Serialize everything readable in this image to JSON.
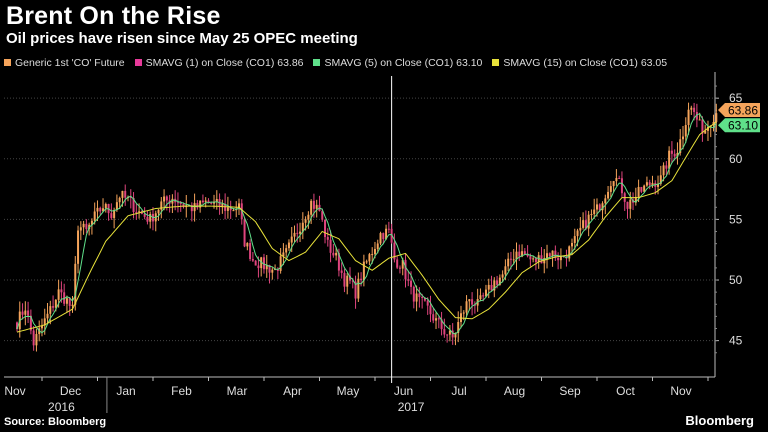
{
  "header": {
    "title": "Brent On the Rise",
    "subtitle": "Oil prices have risen since May 25 OPEC meeting"
  },
  "legend": [
    {
      "label": "Generic 1st 'CO' Future",
      "color": "#f5a45b"
    },
    {
      "label": "SMAVG (1) on Close (CO1) 63.86",
      "color": "#e83a9a"
    },
    {
      "label": "SMAVG (5) on Close (CO1) 63.10",
      "color": "#5fe08a"
    },
    {
      "label": "SMAVG (15) on Close (CO1) 63.05",
      "color": "#e8e23a"
    }
  ],
  "footer": {
    "source": "Source: Bloomberg",
    "brand": "Bloomberg"
  },
  "chart_data": {
    "type": "line",
    "series_names": [
      "Generic 1st 'CO' Future",
      "SMAVG (1) on Close (CO1)",
      "SMAVG (5) on Close (CO1)",
      "SMAVG (15) on Close (CO1)"
    ],
    "x_tick_labels": [
      "Nov",
      "Dec",
      "Jan",
      "Feb",
      "Mar",
      "Apr",
      "May",
      "Jun",
      "Jul",
      "Aug",
      "Sep",
      "Oct",
      "Nov"
    ],
    "year_labels": [
      {
        "label": "2016",
        "month_index": 0.8
      },
      {
        "label": "2017",
        "month_index": 7.1
      }
    ],
    "y_ticks": [
      45,
      50,
      55,
      60,
      65
    ],
    "ylim": [
      42,
      66.5
    ],
    "x_months": [
      0,
      12.6
    ],
    "marker_line_month": 6.75,
    "last_value_labels": [
      {
        "text": "63.86",
        "value": 63.86,
        "color": "#f5a45b"
      },
      {
        "text": "63.10",
        "value": 63.1,
        "color": "#5fe08a"
      }
    ],
    "close_monthly": [
      [
        0.0,
        46.5
      ],
      [
        0.15,
        47.8
      ],
      [
        0.3,
        44.8
      ],
      [
        0.45,
        46.2
      ],
      [
        0.6,
        47.5
      ],
      [
        0.75,
        49.0
      ],
      [
        0.9,
        48.3
      ],
      [
        1.0,
        47.5
      ],
      [
        1.1,
        54.5
      ],
      [
        1.25,
        54.0
      ],
      [
        1.4,
        55.2
      ],
      [
        1.55,
        56.1
      ],
      [
        1.7,
        55.5
      ],
      [
        1.85,
        57.0
      ],
      [
        2.0,
        56.6
      ],
      [
        2.2,
        55.6
      ],
      [
        2.4,
        55.0
      ],
      [
        2.6,
        56.3
      ],
      [
        2.8,
        56.8
      ],
      [
        3.0,
        56.2
      ],
      [
        3.2,
        55.9
      ],
      [
        3.4,
        56.4
      ],
      [
        3.6,
        56.2
      ],
      [
        3.8,
        55.9
      ],
      [
        4.0,
        56.0
      ],
      [
        4.1,
        53.2
      ],
      [
        4.25,
        51.7
      ],
      [
        4.45,
        51.2
      ],
      [
        4.65,
        50.8
      ],
      [
        4.85,
        52.2
      ],
      [
        5.0,
        53.6
      ],
      [
        5.15,
        55.0
      ],
      [
        5.3,
        56.4
      ],
      [
        5.45,
        55.7
      ],
      [
        5.6,
        52.9
      ],
      [
        5.75,
        51.8
      ],
      [
        5.9,
        50.0
      ],
      [
        6.0,
        49.8
      ],
      [
        6.1,
        49.0
      ],
      [
        6.25,
        51.0
      ],
      [
        6.4,
        52.4
      ],
      [
        6.55,
        53.8
      ],
      [
        6.7,
        54.0
      ],
      [
        6.8,
        51.7
      ],
      [
        6.95,
        51.2
      ],
      [
        7.1,
        49.0
      ],
      [
        7.25,
        48.2
      ],
      [
        7.4,
        47.6
      ],
      [
        7.55,
        46.6
      ],
      [
        7.7,
        45.8
      ],
      [
        7.85,
        45.2
      ],
      [
        8.0,
        47.0
      ],
      [
        8.15,
        48.5
      ],
      [
        8.3,
        47.9
      ],
      [
        8.45,
        48.8
      ],
      [
        8.6,
        49.8
      ],
      [
        8.75,
        50.4
      ],
      [
        8.9,
        51.7
      ],
      [
        9.0,
        52.4
      ],
      [
        9.15,
        52.1
      ],
      [
        9.3,
        51.5
      ],
      [
        9.45,
        51.9
      ],
      [
        9.6,
        52.3
      ],
      [
        9.8,
        51.8
      ],
      [
        10.0,
        52.7
      ],
      [
        10.15,
        54.1
      ],
      [
        10.3,
        55.1
      ],
      [
        10.45,
        55.8
      ],
      [
        10.6,
        57.2
      ],
      [
        10.75,
        58.7
      ],
      [
        10.9,
        57.5
      ],
      [
        11.0,
        56.2
      ],
      [
        11.15,
        56.9
      ],
      [
        11.3,
        57.6
      ],
      [
        11.45,
        58.1
      ],
      [
        11.6,
        58.3
      ],
      [
        11.75,
        60.2
      ],
      [
        11.9,
        60.8
      ],
      [
        12.0,
        62.2
      ],
      [
        12.1,
        64.3
      ],
      [
        12.2,
        63.8
      ],
      [
        12.3,
        62.7
      ],
      [
        12.4,
        62.4
      ],
      [
        12.5,
        63.3
      ],
      [
        12.6,
        63.86
      ]
    ],
    "sma15_monthly": [
      [
        0.0,
        45.7
      ],
      [
        0.5,
        46.3
      ],
      [
        1.0,
        47.6
      ],
      [
        1.3,
        50.5
      ],
      [
        1.6,
        53.2
      ],
      [
        2.0,
        55.3
      ],
      [
        2.5,
        55.9
      ],
      [
        3.0,
        56.1
      ],
      [
        3.5,
        56.1
      ],
      [
        4.0,
        56.0
      ],
      [
        4.3,
        54.8
      ],
      [
        4.6,
        52.6
      ],
      [
        4.9,
        51.6
      ],
      [
        5.2,
        52.3
      ],
      [
        5.5,
        54.0
      ],
      [
        5.8,
        53.4
      ],
      [
        6.1,
        51.6
      ],
      [
        6.4,
        50.8
      ],
      [
        6.7,
        51.8
      ],
      [
        7.0,
        52.2
      ],
      [
        7.3,
        50.4
      ],
      [
        7.6,
        48.4
      ],
      [
        7.9,
        46.9
      ],
      [
        8.2,
        46.8
      ],
      [
        8.5,
        47.6
      ],
      [
        8.8,
        49.0
      ],
      [
        9.1,
        50.6
      ],
      [
        9.4,
        51.5
      ],
      [
        9.7,
        51.9
      ],
      [
        10.0,
        52.1
      ],
      [
        10.3,
        53.3
      ],
      [
        10.6,
        55.2
      ],
      [
        10.9,
        56.8
      ],
      [
        11.2,
        56.8
      ],
      [
        11.5,
        57.2
      ],
      [
        11.8,
        58.2
      ],
      [
        12.1,
        60.5
      ],
      [
        12.3,
        62.0
      ],
      [
        12.6,
        63.05
      ]
    ]
  }
}
